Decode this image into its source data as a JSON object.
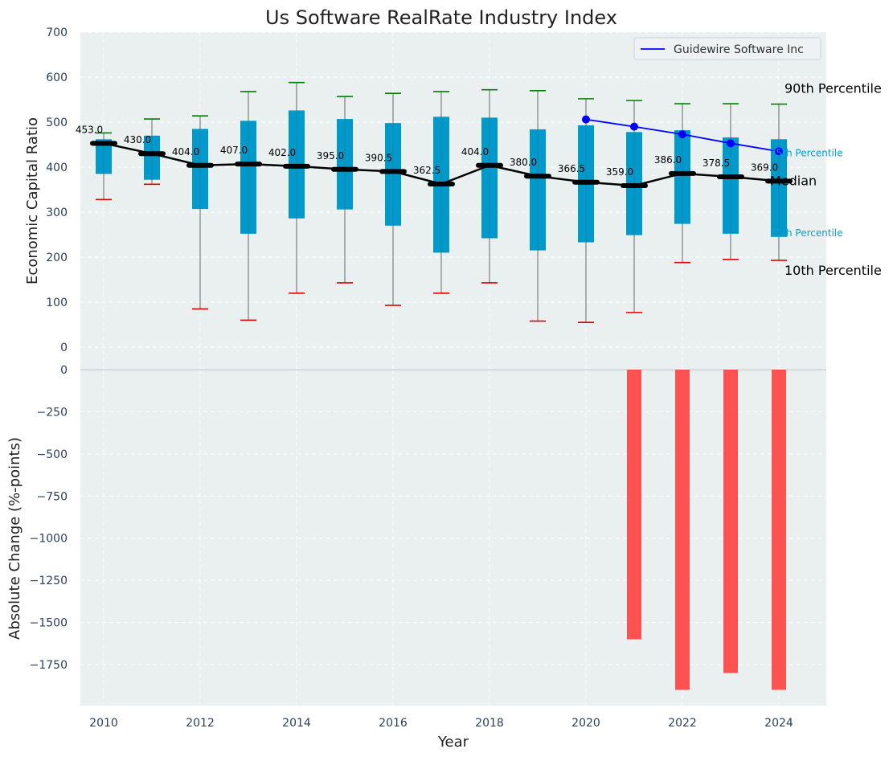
{
  "chart_data": [
    {
      "type": "box",
      "title": "Us Software RealRate Industry Index",
      "ylabel": "Economic Capital Ratio",
      "ylim": [
        0,
        700
      ],
      "yticks": [
        0,
        100,
        200,
        300,
        400,
        500,
        600,
        700
      ],
      "grid": true,
      "categories": [
        2010,
        2011,
        2012,
        2013,
        2014,
        2015,
        2016,
        2017,
        2018,
        2019,
        2020,
        2021,
        2022,
        2023,
        2024
      ],
      "p10": [
        328,
        362,
        85,
        60,
        120,
        143,
        93,
        120,
        143,
        58,
        55,
        77,
        188,
        195,
        193
      ],
      "p25": [
        385,
        372,
        307,
        252,
        286,
        306,
        270,
        210,
        242,
        215,
        233,
        249,
        274,
        252,
        245
      ],
      "median": [
        453.0,
        430.0,
        404.0,
        407.0,
        402.0,
        395.0,
        390.5,
        362.5,
        404.0,
        380.0,
        366.5,
        359.0,
        386.0,
        378.5,
        369.0
      ],
      "median_labels": [
        "453.0",
        "430.0",
        "404.0",
        "407.0",
        "402.0",
        "395.0",
        "390.5",
        "362.5",
        "404.0",
        "380.0",
        "366.5",
        "359.0",
        "386.0",
        "378.5",
        "369.0"
      ],
      "p75": [
        462,
        470,
        485,
        503,
        526,
        507,
        498,
        512,
        510,
        484,
        493,
        478,
        482,
        466,
        462
      ],
      "p90": [
        476,
        507,
        514,
        568,
        588,
        557,
        564,
        568,
        572,
        570,
        552,
        548,
        541,
        541,
        540
      ],
      "series": [
        {
          "name": "Guidewire Software Inc",
          "x": [
            2020,
            2021,
            2022,
            2023,
            2024
          ],
          "values": [
            506,
            490,
            473,
            453,
            435
          ],
          "color": "#0000ff"
        }
      ],
      "percentile_labels": {
        "p90": "90th Percentile",
        "p75": "75th Percentile",
        "median": "Median",
        "p25": "25th Percentile",
        "p10": "10th Percentile"
      },
      "legend": {
        "placement": "top-right"
      },
      "colors": {
        "box": "#0099cc",
        "median": "#000000",
        "p90_cap": "#008000",
        "p10_cap": "#e00000",
        "whisker": "#808080",
        "background": "#eaeff0"
      }
    },
    {
      "type": "bar",
      "xlabel": "Year",
      "ylabel": "Absolute Change (%-points)",
      "ylim": [
        -1990,
        0
      ],
      "yticks": [
        0,
        -250,
        -500,
        -750,
        -1000,
        -1250,
        -1500,
        -1750
      ],
      "ytick_labels": [
        "0",
        "−250",
        "−500",
        "−750",
        "−1000",
        "−1250",
        "−1500",
        "−1750"
      ],
      "xticks": [
        2010,
        2012,
        2014,
        2016,
        2018,
        2020,
        2022,
        2024
      ],
      "grid": true,
      "categories": [
        2021,
        2022,
        2023,
        2024
      ],
      "values": [
        -1600,
        -1900,
        -1800,
        -1900
      ],
      "colors": {
        "bar": "#ff4040",
        "background": "#eaeff0"
      }
    }
  ]
}
